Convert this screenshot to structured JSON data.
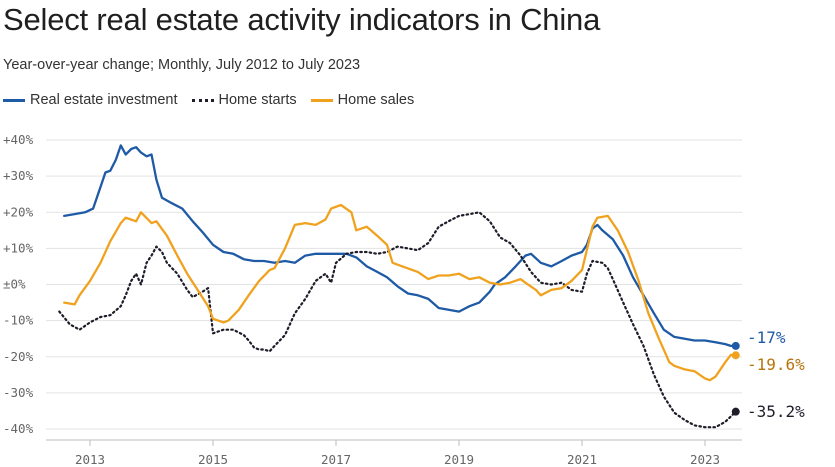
{
  "title": "Select real estate activity indicators in China",
  "subtitle": "Year-over-year change; Monthly, July 2012 to July 2023",
  "legend": [
    {
      "name": "Real estate investment",
      "style": "solid",
      "color": "#1f5aa6"
    },
    {
      "name": "Home starts",
      "style": "dotted",
      "color": "#1e1e2b"
    },
    {
      "name": "Home sales",
      "style": "solid",
      "color": "#f0a21f"
    }
  ],
  "chart_data": {
    "type": "line",
    "x_unit": "year",
    "xlim": [
      2012.5,
      2023.58
    ],
    "ylim": [
      -42,
      43
    ],
    "y_ticks": [
      40,
      30,
      20,
      10,
      0,
      -10,
      -20,
      -30,
      -40
    ],
    "y_tick_labels": [
      "+40%",
      "+30%",
      "+20%",
      "+10%",
      "±0%",
      "-10%",
      "-20%",
      "-30%",
      "-40%"
    ],
    "x_ticks": [
      2013,
      2015,
      2017,
      2019,
      2021,
      2023
    ],
    "x_tick_labels": [
      "2013",
      "2015",
      "2017",
      "2019",
      "2021",
      "2023"
    ],
    "grid": "horizontal",
    "series": [
      {
        "name": "Real estate investment",
        "color": "#1f5aa6",
        "style": "solid",
        "end_label": "-17%",
        "points": [
          [
            2012.58,
            19.0
          ],
          [
            2012.75,
            19.5
          ],
          [
            2012.92,
            20.0
          ],
          [
            2013.05,
            21.0
          ],
          [
            2013.17,
            27.0
          ],
          [
            2013.25,
            31.0
          ],
          [
            2013.33,
            31.5
          ],
          [
            2013.42,
            34.5
          ],
          [
            2013.5,
            38.5
          ],
          [
            2013.58,
            36.0
          ],
          [
            2013.67,
            37.5
          ],
          [
            2013.75,
            38.0
          ],
          [
            2013.83,
            36.5
          ],
          [
            2013.92,
            35.5
          ],
          [
            2014.0,
            36.0
          ],
          [
            2014.08,
            29.0
          ],
          [
            2014.17,
            24.0
          ],
          [
            2014.33,
            22.5
          ],
          [
            2014.5,
            21.0
          ],
          [
            2014.67,
            17.5
          ],
          [
            2014.83,
            14.5
          ],
          [
            2015.0,
            11.0
          ],
          [
            2015.17,
            9.0
          ],
          [
            2015.33,
            8.5
          ],
          [
            2015.5,
            7.0
          ],
          [
            2015.67,
            6.5
          ],
          [
            2015.83,
            6.5
          ],
          [
            2016.0,
            6.0
          ],
          [
            2016.17,
            6.5
          ],
          [
            2016.33,
            6.0
          ],
          [
            2016.5,
            8.0
          ],
          [
            2016.67,
            8.5
          ],
          [
            2016.83,
            8.5
          ],
          [
            2017.0,
            8.5
          ],
          [
            2017.17,
            8.5
          ],
          [
            2017.33,
            7.5
          ],
          [
            2017.5,
            5.0
          ],
          [
            2017.67,
            3.5
          ],
          [
            2017.83,
            2.0
          ],
          [
            2018.0,
            -0.5
          ],
          [
            2018.17,
            -2.5
          ],
          [
            2018.33,
            -3.0
          ],
          [
            2018.5,
            -4.0
          ],
          [
            2018.67,
            -6.5
          ],
          [
            2018.83,
            -7.0
          ],
          [
            2019.0,
            -7.5
          ],
          [
            2019.17,
            -6.0
          ],
          [
            2019.33,
            -5.0
          ],
          [
            2019.5,
            -2.0
          ],
          [
            2019.58,
            0.0
          ],
          [
            2019.75,
            2.0
          ],
          [
            2019.92,
            5.0
          ],
          [
            2020.08,
            8.0
          ],
          [
            2020.17,
            8.5
          ],
          [
            2020.33,
            6.0
          ],
          [
            2020.5,
            5.0
          ],
          [
            2020.67,
            6.5
          ],
          [
            2020.83,
            8.0
          ],
          [
            2021.0,
            9.0
          ],
          [
            2021.08,
            11.0
          ],
          [
            2021.17,
            15.5
          ],
          [
            2021.25,
            16.5
          ],
          [
            2021.33,
            15.0
          ],
          [
            2021.5,
            12.5
          ],
          [
            2021.67,
            8.0
          ],
          [
            2021.83,
            2.0
          ],
          [
            2022.0,
            -3.0
          ],
          [
            2022.17,
            -8.0
          ],
          [
            2022.33,
            -12.5
          ],
          [
            2022.5,
            -14.5
          ],
          [
            2022.67,
            -15.0
          ],
          [
            2022.83,
            -15.5
          ],
          [
            2023.0,
            -15.5
          ],
          [
            2023.17,
            -16.0
          ],
          [
            2023.33,
            -16.5
          ],
          [
            2023.42,
            -17.0
          ],
          [
            2023.5,
            -17.0
          ]
        ]
      },
      {
        "name": "Home starts",
        "color": "#1e1e2b",
        "style": "dotted",
        "end_label": "-35.2%",
        "points": [
          [
            2012.5,
            -7.5
          ],
          [
            2012.67,
            -11.0
          ],
          [
            2012.83,
            -12.5
          ],
          [
            2013.0,
            -10.5
          ],
          [
            2013.17,
            -9.0
          ],
          [
            2013.33,
            -8.5
          ],
          [
            2013.5,
            -6.0
          ],
          [
            2013.58,
            -3.0
          ],
          [
            2013.67,
            1.0
          ],
          [
            2013.75,
            3.0
          ],
          [
            2013.83,
            0.0
          ],
          [
            2013.92,
            6.0
          ],
          [
            2014.0,
            8.0
          ],
          [
            2014.08,
            10.5
          ],
          [
            2014.17,
            9.0
          ],
          [
            2014.25,
            6.0
          ],
          [
            2014.42,
            3.0
          ],
          [
            2014.58,
            -1.5
          ],
          [
            2014.67,
            -3.5
          ],
          [
            2014.83,
            -2.0
          ],
          [
            2014.92,
            -1.0
          ],
          [
            2015.0,
            -13.5
          ],
          [
            2015.17,
            -12.5
          ],
          [
            2015.33,
            -12.5
          ],
          [
            2015.5,
            -14.0
          ],
          [
            2015.58,
            -15.5
          ],
          [
            2015.67,
            -17.5
          ],
          [
            2015.75,
            -18.0
          ],
          [
            2015.83,
            -18.0
          ],
          [
            2015.92,
            -18.5
          ],
          [
            2016.0,
            -17.0
          ],
          [
            2016.17,
            -14.0
          ],
          [
            2016.33,
            -8.0
          ],
          [
            2016.5,
            -4.0
          ],
          [
            2016.67,
            1.0
          ],
          [
            2016.83,
            3.0
          ],
          [
            2016.92,
            0.5
          ],
          [
            2017.0,
            6.0
          ],
          [
            2017.17,
            8.5
          ],
          [
            2017.33,
            9.0
          ],
          [
            2017.5,
            9.0
          ],
          [
            2017.67,
            8.5
          ],
          [
            2017.83,
            9.0
          ],
          [
            2018.0,
            10.5
          ],
          [
            2018.17,
            10.0
          ],
          [
            2018.33,
            9.5
          ],
          [
            2018.5,
            11.5
          ],
          [
            2018.67,
            16.0
          ],
          [
            2018.83,
            17.5
          ],
          [
            2019.0,
            19.0
          ],
          [
            2019.17,
            19.5
          ],
          [
            2019.33,
            20.0
          ],
          [
            2019.5,
            17.5
          ],
          [
            2019.67,
            13.0
          ],
          [
            2019.83,
            11.5
          ],
          [
            2020.0,
            8.0
          ],
          [
            2020.17,
            3.5
          ],
          [
            2020.33,
            0.5
          ],
          [
            2020.5,
            0.0
          ],
          [
            2020.67,
            0.5
          ],
          [
            2020.83,
            -1.5
          ],
          [
            2021.0,
            -2.0
          ],
          [
            2021.08,
            3.0
          ],
          [
            2021.17,
            6.5
          ],
          [
            2021.33,
            6.0
          ],
          [
            2021.42,
            4.5
          ],
          [
            2021.5,
            1.5
          ],
          [
            2021.67,
            -5.0
          ],
          [
            2021.83,
            -11.0
          ],
          [
            2022.0,
            -17.0
          ],
          [
            2022.17,
            -25.0
          ],
          [
            2022.33,
            -31.0
          ],
          [
            2022.5,
            -35.5
          ],
          [
            2022.67,
            -37.5
          ],
          [
            2022.83,
            -39.0
          ],
          [
            2023.0,
            -39.5
          ],
          [
            2023.17,
            -39.5
          ],
          [
            2023.33,
            -38.0
          ],
          [
            2023.5,
            -35.2
          ]
        ]
      },
      {
        "name": "Home sales",
        "color": "#f0a21f",
        "style": "solid",
        "end_label": "-19.6%",
        "points": [
          [
            2012.58,
            -5.0
          ],
          [
            2012.75,
            -5.5
          ],
          [
            2012.83,
            -3.0
          ],
          [
            2013.0,
            1.0
          ],
          [
            2013.17,
            6.0
          ],
          [
            2013.33,
            12.0
          ],
          [
            2013.5,
            17.0
          ],
          [
            2013.58,
            18.5
          ],
          [
            2013.75,
            17.5
          ],
          [
            2013.83,
            20.0
          ],
          [
            2014.0,
            17.0
          ],
          [
            2014.08,
            17.5
          ],
          [
            2014.25,
            13.5
          ],
          [
            2014.42,
            8.0
          ],
          [
            2014.58,
            3.0
          ],
          [
            2014.75,
            -1.5
          ],
          [
            2014.92,
            -6.0
          ],
          [
            2015.0,
            -9.5
          ],
          [
            2015.17,
            -10.5
          ],
          [
            2015.25,
            -10.0
          ],
          [
            2015.42,
            -7.0
          ],
          [
            2015.58,
            -3.0
          ],
          [
            2015.75,
            1.0
          ],
          [
            2015.92,
            4.0
          ],
          [
            2016.0,
            4.5
          ],
          [
            2016.17,
            10.0
          ],
          [
            2016.33,
            16.5
          ],
          [
            2016.5,
            17.0
          ],
          [
            2016.67,
            16.5
          ],
          [
            2016.83,
            18.0
          ],
          [
            2016.92,
            21.0
          ],
          [
            2017.08,
            22.0
          ],
          [
            2017.25,
            20.0
          ],
          [
            2017.33,
            15.0
          ],
          [
            2017.5,
            16.0
          ],
          [
            2017.67,
            13.5
          ],
          [
            2017.83,
            11.0
          ],
          [
            2017.92,
            6.0
          ],
          [
            2018.08,
            5.0
          ],
          [
            2018.33,
            3.5
          ],
          [
            2018.5,
            1.5
          ],
          [
            2018.67,
            2.5
          ],
          [
            2018.83,
            2.5
          ],
          [
            2019.0,
            3.0
          ],
          [
            2019.17,
            1.5
          ],
          [
            2019.33,
            2.0
          ],
          [
            2019.5,
            0.5
          ],
          [
            2019.67,
            0.0
          ],
          [
            2019.83,
            0.5
          ],
          [
            2020.0,
            1.5
          ],
          [
            2020.08,
            0.5
          ],
          [
            2020.25,
            -1.5
          ],
          [
            2020.33,
            -3.0
          ],
          [
            2020.5,
            -1.5
          ],
          [
            2020.67,
            -1.0
          ],
          [
            2020.83,
            1.0
          ],
          [
            2021.0,
            4.0
          ],
          [
            2021.17,
            16.0
          ],
          [
            2021.25,
            18.5
          ],
          [
            2021.42,
            19.0
          ],
          [
            2021.58,
            15.0
          ],
          [
            2021.75,
            9.0
          ],
          [
            2021.92,
            1.0
          ],
          [
            2022.08,
            -8.0
          ],
          [
            2022.25,
            -15.0
          ],
          [
            2022.42,
            -21.5
          ],
          [
            2022.5,
            -22.5
          ],
          [
            2022.67,
            -23.5
          ],
          [
            2022.83,
            -24.0
          ],
          [
            2023.0,
            -26.0
          ],
          [
            2023.08,
            -26.5
          ],
          [
            2023.17,
            -25.5
          ],
          [
            2023.33,
            -21.5
          ],
          [
            2023.42,
            -19.5
          ],
          [
            2023.5,
            -19.6
          ]
        ]
      }
    ]
  }
}
